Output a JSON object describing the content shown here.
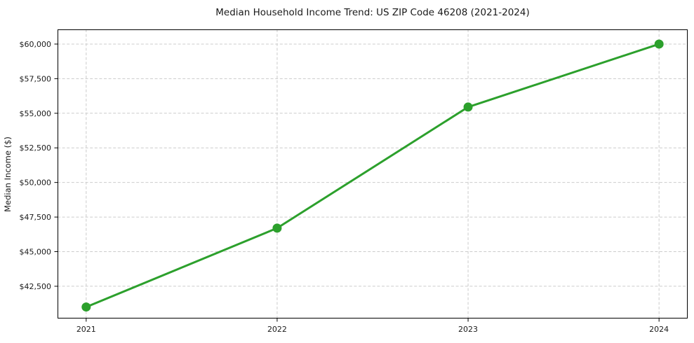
{
  "chart_data": {
    "type": "line",
    "title": "Median Household Income Trend: US ZIP Code 46208 (2021-2024)",
    "xlabel": "",
    "ylabel": "Median Income ($)",
    "x": [
      2021,
      2022,
      2023,
      2024
    ],
    "series": [
      {
        "name": "Median Household Income",
        "color": "#2ca02c",
        "marker": "circle",
        "values": [
          41000,
          46700,
          55450,
          60000
        ]
      }
    ],
    "x_tick_labels": [
      "2021",
      "2022",
      "2023",
      "2024"
    ],
    "y_tick_values": [
      42500,
      45000,
      47500,
      50000,
      52500,
      55000,
      57500,
      60000
    ],
    "y_tick_labels": [
      "$42,500",
      "$45,000",
      "$47,500",
      "$50,000",
      "$52,500",
      "$55,000",
      "$57,500",
      "$60,000"
    ],
    "xlim": [
      2020.85,
      2024.15
    ],
    "ylim": [
      40170,
      61060
    ],
    "grid": true,
    "grid_style": "dashed",
    "legend_visible": false,
    "colors": {
      "line": "#2ca02c",
      "marker": "#2ca02c",
      "grid": "#cccccc",
      "axis": "#000000",
      "text": "#1a1a1a",
      "background": "#ffffff"
    }
  }
}
